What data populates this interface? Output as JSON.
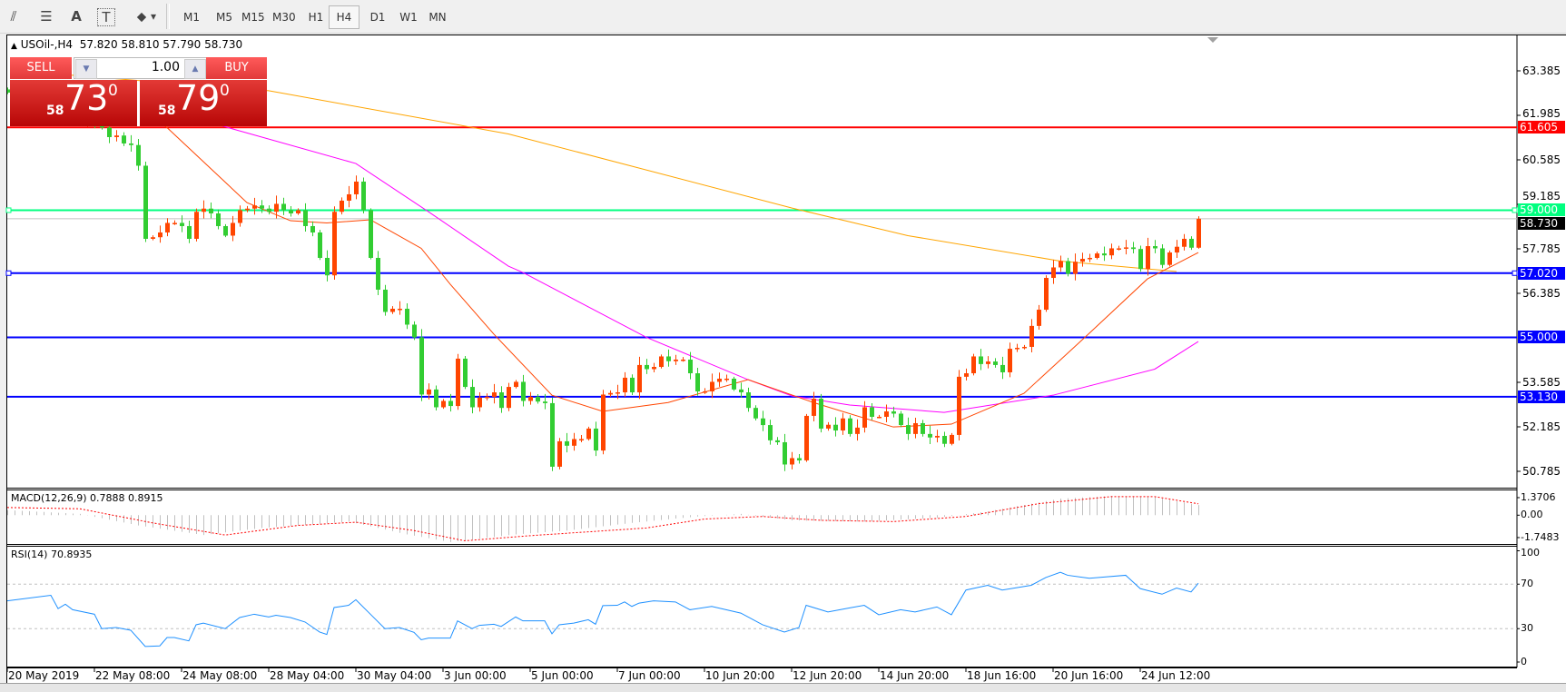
{
  "toolbar": {
    "tools": [
      {
        "name": "elliott-wave-icon",
        "glyph": "⫽"
      },
      {
        "name": "fibonacci-icon",
        "glyph": "☰"
      },
      {
        "name": "text-icon",
        "glyph": "A"
      },
      {
        "name": "text-label-icon",
        "glyph": "T"
      },
      {
        "name": "arrows-icon",
        "glyph": "⬥"
      }
    ],
    "dropdown_glyph": "▾",
    "timeframes": [
      "M1",
      "M5",
      "M15",
      "M30",
      "H1",
      "H4",
      "D1",
      "W1",
      "MN"
    ],
    "selected_timeframe": "H4"
  },
  "chart_header": {
    "arrow": "▲",
    "text": "USOil-,H4  57.820 58.810 57.790 58.730"
  },
  "one_click": {
    "sell_label": "SELL",
    "buy_label": "BUY",
    "volume": "1.00",
    "down_glyph": "▼",
    "up_glyph": "▲",
    "sell_price": {
      "big": "58",
      "main": "73",
      "sup": "0"
    },
    "buy_price": {
      "big": "58",
      "main": "79",
      "sup": "0"
    },
    "color": "#c81e1e"
  },
  "chart_data": {
    "type": "candlestick",
    "symbol": "USOil-",
    "timeframe": "H4",
    "last_bar": {
      "open": 57.82,
      "high": 58.81,
      "low": 57.79,
      "close": 58.73
    },
    "closes": [
      62.7,
      62.5,
      62.6,
      62.8,
      62.5,
      62.2,
      62.3,
      62.0,
      61.9,
      62.1,
      61.8,
      61.9,
      61.7,
      61.6,
      61.3,
      61.35,
      61.1,
      61.05,
      60.4,
      58.1,
      58.15,
      58.3,
      58.6,
      58.6,
      58.5,
      58.1,
      58.95,
      59.05,
      58.9,
      58.5,
      58.2,
      58.6,
      59.0,
      59.05,
      59.15,
      59.05,
      58.95,
      59.2,
      59.0,
      58.9,
      59.0,
      58.5,
      58.3,
      57.5,
      56.95,
      58.95,
      59.3,
      59.5,
      59.9,
      59.0,
      57.5,
      56.5,
      55.8,
      55.9,
      55.9,
      55.4,
      55.0,
      53.2,
      53.36,
      52.8,
      53.0,
      52.84,
      54.33,
      53.44,
      52.8,
      53.1,
      53.13,
      53.27,
      52.78,
      53.44,
      53.6,
      53.0,
      53.13,
      52.98,
      52.93,
      50.93,
      51.73,
      51.59,
      51.8,
      51.8,
      52.13,
      51.44,
      53.2,
      53.25,
      53.27,
      53.73,
      53.27,
      54.13,
      54.0,
      54.07,
      54.4,
      54.25,
      54.3,
      54.3,
      53.87,
      53.3,
      53.3,
      53.6,
      53.7,
      53.7,
      53.36,
      53.27,
      52.78,
      52.45,
      52.24,
      51.76,
      51.7,
      51.0,
      51.2,
      51.13,
      52.53,
      53.07,
      52.13,
      52.25,
      52.07,
      52.45,
      51.96,
      52.16,
      52.8,
      52.5,
      52.5,
      52.67,
      52.6,
      52.24,
      51.96,
      52.3,
      51.96,
      51.85,
      51.9,
      51.65,
      51.93,
      53.76,
      53.87,
      54.4,
      54.16,
      54.24,
      54.13,
      53.9,
      54.64,
      54.67,
      54.7,
      55.36,
      55.87,
      56.87,
      57.2,
      57.4,
      57.0,
      57.38,
      57.47,
      57.5,
      57.64,
      57.58,
      57.8,
      57.8,
      57.83,
      57.78,
      57.15,
      57.87,
      57.8,
      57.28,
      57.67,
      57.85,
      58.1,
      57.82,
      58.73
    ],
    "bull_color": "#ff4500",
    "bear_color": "#32cd32",
    "moving_averages": [
      {
        "color": "#ffa500",
        "points": [
          [
            6,
            63.3
          ],
          [
            36,
            62.76
          ],
          [
            69,
            61.4
          ],
          [
            108,
            59.07
          ],
          [
            124,
            58.2
          ],
          [
            145,
            57.4
          ],
          [
            161,
            57.07
          ]
        ]
      },
      {
        "color": "#ff00ff",
        "points": [
          [
            29,
            61.7
          ],
          [
            31,
            61.56
          ],
          [
            48,
            60.47
          ],
          [
            58,
            58.95
          ],
          [
            69,
            57.24
          ],
          [
            71,
            57.04
          ],
          [
            88,
            55.0
          ],
          [
            102,
            53.67
          ],
          [
            108,
            53.16
          ],
          [
            116,
            52.87
          ],
          [
            129,
            52.64
          ],
          [
            144,
            53.18
          ],
          [
            158,
            54.0
          ],
          [
            164,
            54.87
          ]
        ]
      },
      {
        "color": "#ff4500",
        "points": [
          [
            20,
            62.0
          ],
          [
            22,
            61.6
          ],
          [
            33,
            59.24
          ],
          [
            39,
            58.67
          ],
          [
            44,
            58.6
          ],
          [
            50,
            58.7
          ],
          [
            57,
            57.8
          ],
          [
            61,
            56.67
          ],
          [
            67,
            55.1
          ],
          [
            75,
            53.18
          ],
          [
            82,
            52.67
          ],
          [
            91,
            52.95
          ],
          [
            102,
            53.67
          ],
          [
            111,
            52.95
          ],
          [
            122,
            52.18
          ],
          [
            130,
            52.27
          ],
          [
            140,
            53.24
          ],
          [
            149,
            55.13
          ],
          [
            157,
            56.84
          ],
          [
            164,
            57.67
          ]
        ]
      }
    ],
    "horizontal_lines": [
      {
        "price": 61.605,
        "label": "61.605",
        "color": "#ff0000"
      },
      {
        "price": 59.0,
        "label": "59.000",
        "color": "#00ff7f"
      },
      {
        "price": 57.02,
        "label": "57.020",
        "color": "#0000ff"
      },
      {
        "price": 55.0,
        "label": "55.000",
        "color": "#0000ff"
      },
      {
        "price": 53.13,
        "label": "53.130",
        "color": "#0000ff"
      }
    ],
    "current_price": {
      "price": 58.73,
      "label": "58.730"
    },
    "price_axis": {
      "ticks": [
        "63.385",
        "61.985",
        "60.585",
        "59.185",
        "57.785",
        "56.385",
        "53.585",
        "52.185",
        "50.785"
      ]
    },
    "time_axis": {
      "ticks": [
        "20 May 2019",
        "22 May 08:00",
        "24 May 08:00",
        "28 May 04:00",
        "30 May 04:00",
        "3 Jun 00:00",
        "5 Jun 00:00",
        "7 Jun 00:00",
        "10 Jun 20:00",
        "12 Jun 20:00",
        "14 Jun 20:00",
        "18 Jun 16:00",
        "20 Jun 16:00",
        "24 Jun 12:00"
      ]
    },
    "macd": {
      "label": "MACD(12,26,9) 0.7888 0.8915",
      "ticks": [
        "1.3706",
        "0.00",
        "-1.7483"
      ],
      "histogram_color": "#c0c0c0",
      "signal_color": "#ff0000",
      "histogram": [
        [
          0,
          0.4
        ],
        [
          10,
          0.1
        ],
        [
          18,
          -0.8
        ],
        [
          27,
          -1.55
        ],
        [
          35,
          -1.0
        ],
        [
          47,
          -0.5
        ],
        [
          55,
          -1.5
        ],
        [
          61,
          -2.1
        ],
        [
          70,
          -1.5
        ],
        [
          77,
          -1.2
        ],
        [
          86,
          -0.6
        ],
        [
          95,
          -0.1
        ],
        [
          101,
          0.1
        ],
        [
          108,
          -0.4
        ],
        [
          118,
          -0.5
        ],
        [
          128,
          -0.2
        ],
        [
          135,
          0.3
        ],
        [
          145,
          1.3
        ],
        [
          152,
          1.5
        ],
        [
          158,
          1.4
        ],
        [
          164,
          0.79
        ]
      ],
      "signal": [
        [
          0,
          0.6
        ],
        [
          10,
          0.5
        ],
        [
          20,
          -0.6
        ],
        [
          30,
          -1.55
        ],
        [
          40,
          -0.8
        ],
        [
          48,
          -0.55
        ],
        [
          56,
          -1.2
        ],
        [
          63,
          -2.0
        ],
        [
          72,
          -1.6
        ],
        [
          80,
          -1.3
        ],
        [
          88,
          -1.0
        ],
        [
          96,
          -0.3
        ],
        [
          104,
          -0.1
        ],
        [
          112,
          -0.4
        ],
        [
          122,
          -0.5
        ],
        [
          132,
          -0.1
        ],
        [
          142,
          0.9
        ],
        [
          152,
          1.45
        ],
        [
          158,
          1.45
        ],
        [
          164,
          0.89
        ]
      ]
    },
    "rsi": {
      "label": "RSI(14) 70.8935",
      "ticks": [
        "100",
        "70",
        "30",
        "0"
      ],
      "levels": [
        70,
        30
      ],
      "color": "#1e90ff",
      "points": [
        [
          0,
          55
        ],
        [
          6,
          60
        ],
        [
          7,
          48
        ],
        [
          8,
          52
        ],
        [
          9,
          47
        ],
        [
          12,
          43
        ],
        [
          13,
          30
        ],
        [
          15,
          31
        ],
        [
          17,
          28.6
        ],
        [
          19,
          14
        ],
        [
          21,
          14.5
        ],
        [
          22,
          22
        ],
        [
          23,
          22
        ],
        [
          25,
          19
        ],
        [
          26,
          33.5
        ],
        [
          27,
          35
        ],
        [
          30,
          30
        ],
        [
          32,
          40
        ],
        [
          34,
          43
        ],
        [
          36,
          40.5
        ],
        [
          37,
          42
        ],
        [
          39,
          40
        ],
        [
          41,
          36
        ],
        [
          43,
          27
        ],
        [
          44,
          24.8
        ],
        [
          45,
          49
        ],
        [
          47,
          51
        ],
        [
          48,
          56
        ],
        [
          50,
          43
        ],
        [
          52,
          30
        ],
        [
          54,
          31
        ],
        [
          56,
          26.7
        ],
        [
          57,
          20
        ],
        [
          58,
          21.5
        ],
        [
          61,
          21.5
        ],
        [
          62,
          37
        ],
        [
          64,
          30
        ],
        [
          65,
          33
        ],
        [
          67,
          34
        ],
        [
          68,
          32
        ],
        [
          70,
          40.5
        ],
        [
          71,
          37
        ],
        [
          74,
          37
        ],
        [
          75,
          25.4
        ],
        [
          76,
          33.5
        ],
        [
          78,
          35
        ],
        [
          80,
          38
        ],
        [
          81,
          34
        ],
        [
          82,
          50.7
        ],
        [
          84,
          51
        ],
        [
          85,
          54
        ],
        [
          86,
          50
        ],
        [
          87,
          53
        ],
        [
          89,
          55
        ],
        [
          92,
          54
        ],
        [
          94,
          47
        ],
        [
          97,
          50
        ],
        [
          101,
          44
        ],
        [
          104,
          33.5
        ],
        [
          107,
          27
        ],
        [
          109,
          31
        ],
        [
          110,
          51
        ],
        [
          113,
          45
        ],
        [
          116,
          48.7
        ],
        [
          118,
          51
        ],
        [
          120,
          42.5
        ],
        [
          123,
          47
        ],
        [
          125,
          45
        ],
        [
          128,
          49.5
        ],
        [
          130,
          42.5
        ],
        [
          132,
          64.7
        ],
        [
          135,
          69
        ],
        [
          137,
          64.7
        ],
        [
          141,
          69
        ],
        [
          143,
          76
        ],
        [
          145,
          80.7
        ],
        [
          146,
          78
        ],
        [
          149,
          75.3
        ],
        [
          154,
          78
        ],
        [
          156,
          66
        ],
        [
          159,
          61
        ],
        [
          161,
          66.5
        ],
        [
          163,
          63
        ],
        [
          164,
          70.9
        ]
      ]
    }
  }
}
